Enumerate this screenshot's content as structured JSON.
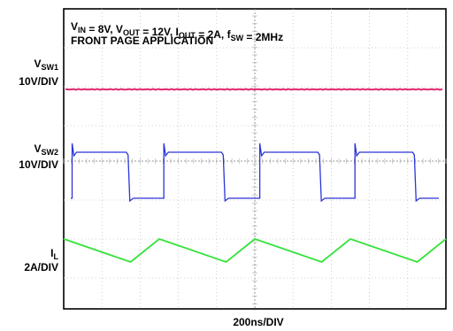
{
  "header": {
    "line1": [
      {
        "t": "V",
        "sub": false
      },
      {
        "t": "IN",
        "sub": true
      },
      {
        "t": " = 8V, V",
        "sub": false
      },
      {
        "t": "OUT",
        "sub": true
      },
      {
        "t": " = 12V, I",
        "sub": false
      },
      {
        "t": "OUT",
        "sub": true
      },
      {
        "t": " = 2A, f",
        "sub": false
      },
      {
        "t": "SW",
        "sub": true
      },
      {
        "t": " = 2MHz",
        "sub": false
      }
    ],
    "line2": "FRONT PAGE APPLICATION"
  },
  "channels": [
    {
      "name": "V",
      "sub": "SW1",
      "scale": "10V/DIV",
      "color": "#e0286e"
    },
    {
      "name": "V",
      "sub": "SW2",
      "scale": "10V/DIV",
      "color": "#2a35d8"
    },
    {
      "name": "I",
      "sub": "L",
      "scale": "2A/DIV",
      "color": "#35e23a"
    }
  ],
  "xlabel": "200ns/DIV",
  "chart_data": {
    "type": "line",
    "xlabel": "200ns/DIV",
    "time_per_div_ns": 200,
    "divisions": {
      "x": 10,
      "y": 8
    },
    "grid": true,
    "series": [
      {
        "name": "VSW1",
        "scale": "10V/DIV",
        "color": "#e0286e",
        "x_div": [
          0,
          10
        ],
        "y_div": [
          6.25,
          6.25
        ]
      },
      {
        "name": "VSW2",
        "scale": "10V/DIV",
        "color": "#2a35d8",
        "x_div": [
          0.2,
          0.22,
          0.25,
          3.45,
          3.48,
          3.5,
          5.2,
          5.22,
          5.25,
          8.45,
          8.48,
          8.5,
          10.2,
          10.22,
          10.25,
          13.45,
          13.48,
          13.5,
          15.2,
          15.22,
          15.25,
          18.45,
          18.48,
          18.5,
          20
        ],
        "x_unit_note": "period 5 div units of 0.5 div",
        "transitions_div": [
          0.22,
          1.73,
          2.62,
          4.22,
          5.13,
          6.74,
          7.62,
          9.22
        ],
        "levels_div": {
          "high": 4.65,
          "low": 3.27
        }
      },
      {
        "name": "IL",
        "scale": "2A/DIV",
        "color": "#35e23a",
        "peaks_div": [
          0.0,
          2.5,
          5.0,
          7.5,
          10.0
        ],
        "valleys_div": [
          1.75,
          4.25,
          6.75,
          9.25
        ],
        "levels_div": {
          "peak": 1.9,
          "valley": 1.1
        }
      }
    ]
  }
}
